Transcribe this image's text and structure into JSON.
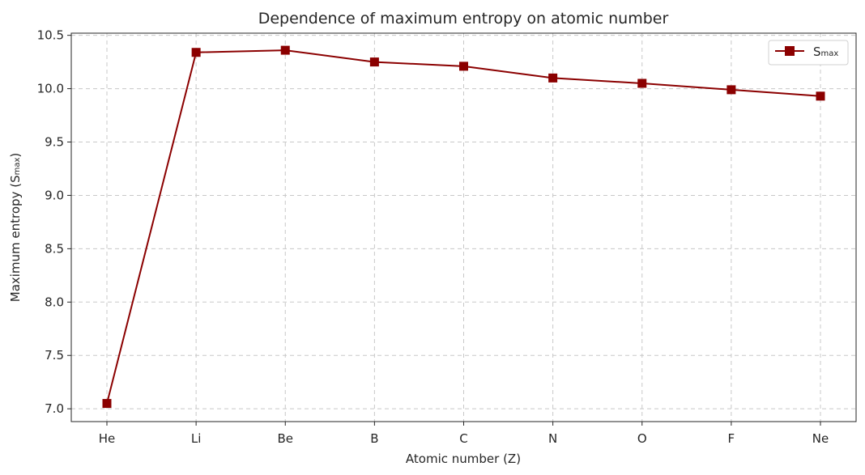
{
  "chart_data": {
    "type": "line",
    "title": "Dependence of maximum entropy on atomic number",
    "xlabel": "Atomic number (Z)",
    "ylabel": "Maximum entropy (S",
    "ylabel_sub": "max",
    "ylabel_end": ")",
    "categories": [
      "He",
      "Li",
      "Be",
      "B",
      "C",
      "N",
      "O",
      "F",
      "Ne"
    ],
    "series": [
      {
        "name": "S",
        "name_sub": "max",
        "color": "#8b0000",
        "marker": "square",
        "values": [
          7.05,
          10.34,
          10.36,
          10.25,
          10.21,
          10.1,
          10.05,
          9.99,
          9.93
        ]
      }
    ],
    "ylim": [
      6.88,
      10.52
    ],
    "yticks": [
      "7.0",
      "7.5",
      "8.0",
      "8.5",
      "9.0",
      "9.5",
      "10.0",
      "10.5"
    ],
    "grid": true,
    "legend": "top-right"
  }
}
